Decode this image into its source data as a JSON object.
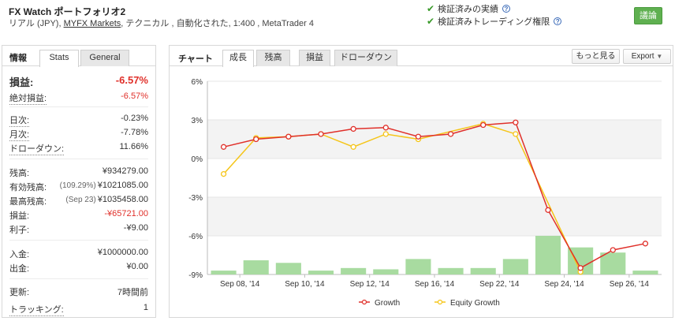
{
  "header": {
    "title": "FX Watch ポートフォリオ2",
    "subtitle_prefix": "リアル (JPY), ",
    "broker": "MYFX Markets",
    "subtitle_suffix": ", テクニカル , 自動化された, 1:400 , MetaTrader 4",
    "verify1": "検証済みの実績",
    "verify2": "検証済みトレーディング権限",
    "discuss_label": "議論"
  },
  "left_panel": {
    "title": "情報",
    "tabs": [
      "Stats",
      "General"
    ],
    "profit_label": "損益:",
    "profit_value": "-6.57%",
    "abs_label": "絶対損益:",
    "abs_value": "-6.57%",
    "daily_label": "日次:",
    "daily_value": "-0.23%",
    "monthly_label": "月次:",
    "monthly_value": "-7.78%",
    "drawdown_label": "ドローダウン:",
    "drawdown_value": "11.66%",
    "balance_label": "残高:",
    "balance_value": "¥934279.00",
    "equity_label": "有効残高:",
    "equity_pre": "(109.29%)",
    "equity_value": "¥1021085.00",
    "high_label": "最高残高:",
    "high_pre": "(Sep 23)",
    "high_value": "¥1035458.00",
    "pl_label": "損益:",
    "pl_value": "-¥65721.00",
    "interest_label": "利子:",
    "interest_value": "-¥9.00",
    "deposit_label": "入金:",
    "deposit_value": "¥1000000.00",
    "withdraw_label": "出金:",
    "withdraw_value": "¥0.00",
    "updated_label": "更新:",
    "updated_value": "7時間前",
    "tracking_label": "トラッキング:",
    "tracking_value": "1"
  },
  "right_panel": {
    "title": "チャート",
    "tabs": [
      "成長",
      "残高",
      "損益",
      "ドローダウン"
    ],
    "more_label": "もっと見る",
    "export_label": "Export"
  },
  "colors": {
    "growth": "#e0302a",
    "equity": "#f5c518",
    "bars": "#a8dba0",
    "accent_green": "#5fb050",
    "negative": "#e0302a"
  },
  "chart_data": {
    "type": "line",
    "ylim": [
      -9,
      6
    ],
    "yticks": [
      "6%",
      "3%",
      "0%",
      "-3%",
      "-6%",
      "-9%"
    ],
    "ytick_values": [
      6,
      3,
      0,
      -3,
      -6,
      -9
    ],
    "xtick_labels": [
      "Sep 08, '14",
      "Sep 10, '14",
      "Sep 12, '14",
      "Sep 16, '14",
      "Sep 22, '14",
      "Sep 24, '14",
      "Sep 26, '14"
    ],
    "xtick_index": [
      0.5,
      2.5,
      4.5,
      6.5,
      8.5,
      10.5,
      12.5
    ],
    "n_points": 14,
    "series": [
      {
        "name": "Growth",
        "color": "#e0302a",
        "values": [
          0.9,
          1.5,
          1.7,
          1.9,
          2.3,
          2.4,
          1.7,
          1.9,
          2.6,
          2.8,
          -4.0,
          -8.5,
          -7.1,
          -6.6
        ]
      },
      {
        "name": "Equity Growth",
        "color": "#f5c518",
        "values": [
          -1.2,
          1.6,
          1.7,
          1.9,
          0.9,
          1.9,
          1.5,
          null,
          2.7,
          1.9,
          null,
          -8.8,
          null,
          null
        ]
      }
    ],
    "bars": [
      -8.7,
      -7.9,
      -8.1,
      -8.7,
      -8.5,
      -8.6,
      -7.8,
      -8.5,
      -8.5,
      -7.8,
      -6.0,
      -6.9,
      -7.3,
      -8.7
    ],
    "grid": true,
    "legend": "bottom"
  }
}
